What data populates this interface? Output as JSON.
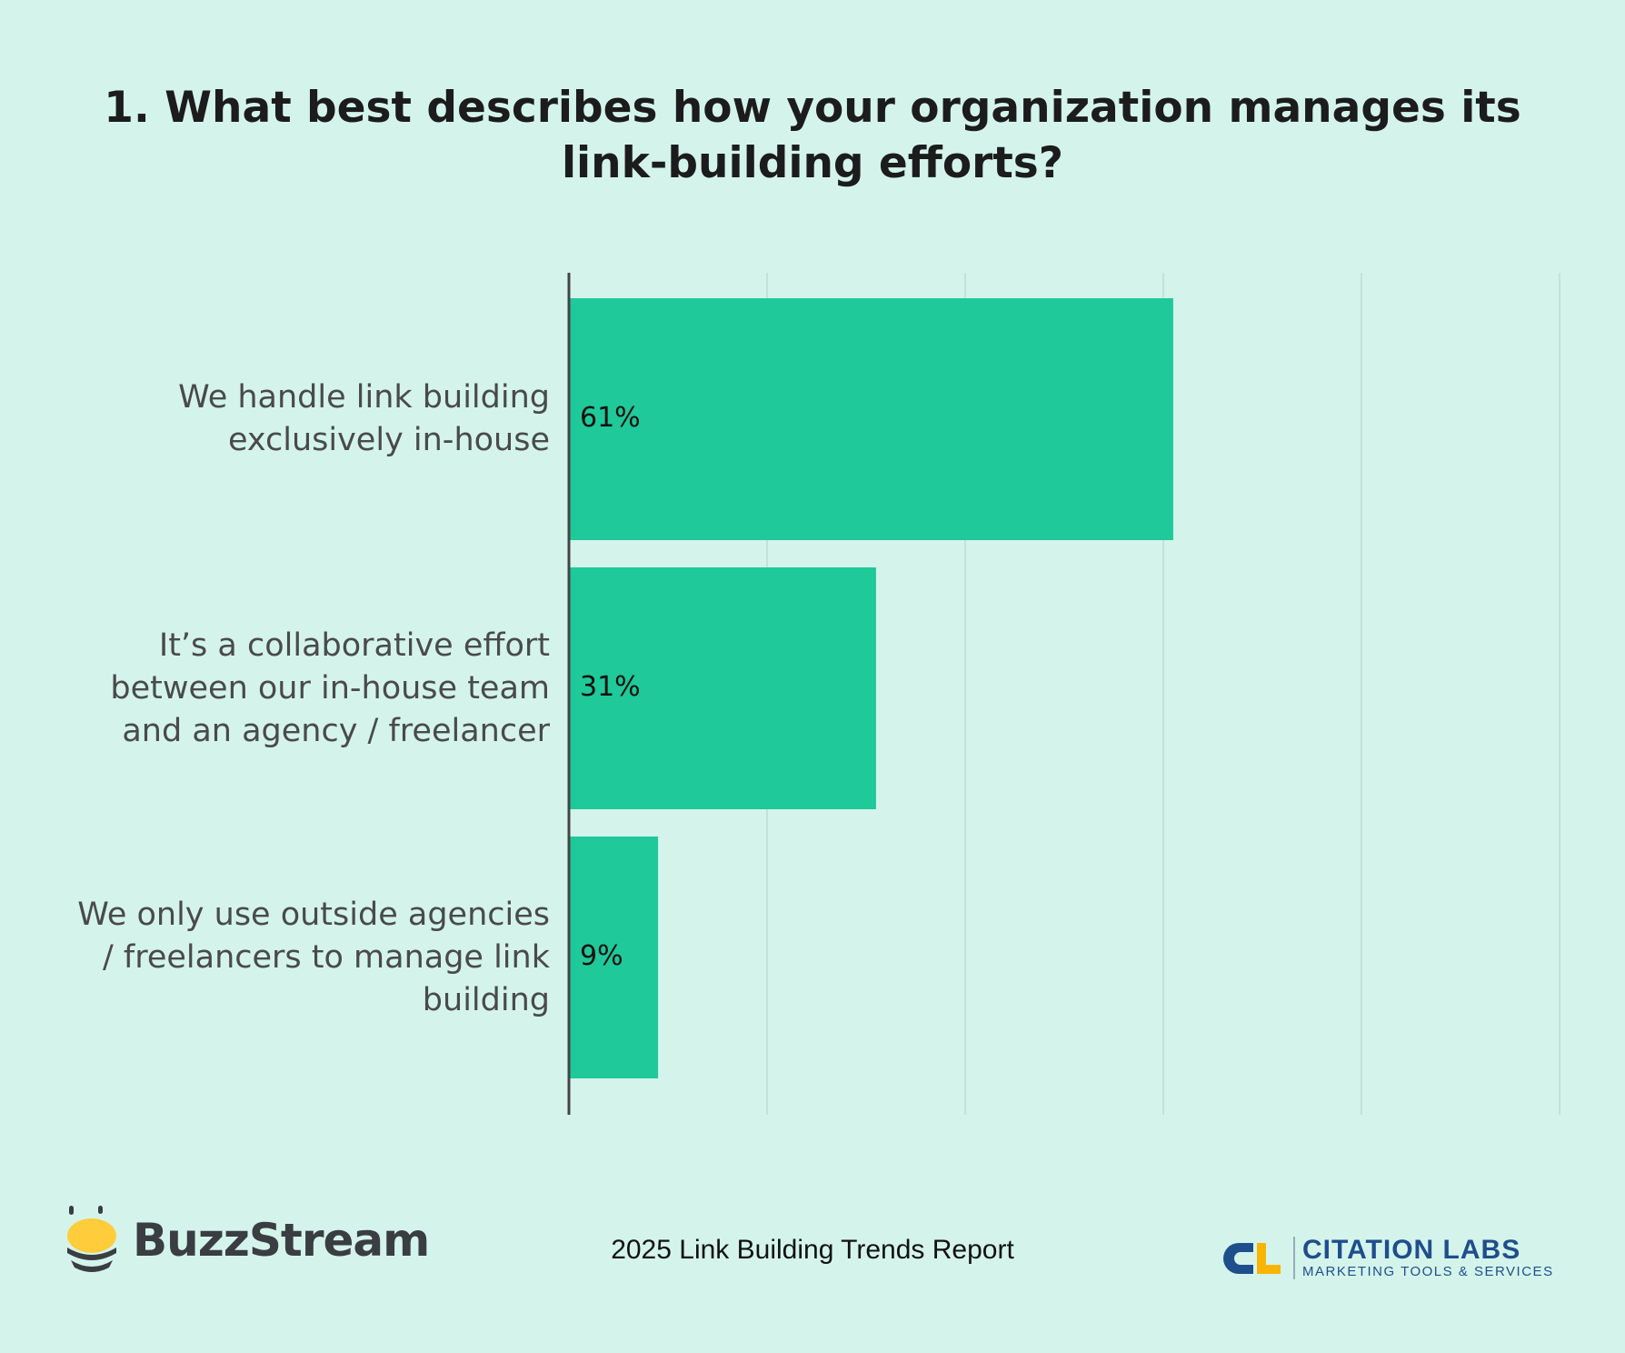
{
  "chart_data": {
    "type": "bar",
    "orientation": "horizontal",
    "title": "1. What best describes how your organization manages its link-building efforts?",
    "categories": [
      "We handle link building exclusively in-house",
      "It’s a collaborative effort between our in-house team and an agency / freelancer",
      "We only use outside agencies / freelancers to manage link building"
    ],
    "category_lines": [
      [
        "We handle link building",
        "exclusively in-house"
      ],
      [
        "It’s a collaborative effort",
        "between our in-house team",
        "and an agency / freelancer"
      ],
      [
        "We only use outside agencies",
        "/ freelancers to manage link",
        "building"
      ]
    ],
    "values": [
      61,
      31,
      9
    ],
    "data_labels": [
      "61%",
      "31%",
      "9%"
    ],
    "xlim": [
      0,
      100
    ],
    "grid_step": 20,
    "grid": true,
    "bar_color": "#1fc999",
    "xlabel": "",
    "ylabel": ""
  },
  "footer": {
    "report": "2025 Link Building Trends Report",
    "left_logo": "BuzzStream",
    "right_logo": {
      "name": "CITATION LABS",
      "tagline": "MARKETING TOOLS & SERVICES",
      "mark": "CL"
    }
  },
  "colors": {
    "background": "#d4f4eb",
    "bar": "#1fc999",
    "axis": "#444444",
    "grid": "#c2e3da",
    "logo_blue": "#1f4e8c",
    "logo_yellow": "#f7b500"
  }
}
